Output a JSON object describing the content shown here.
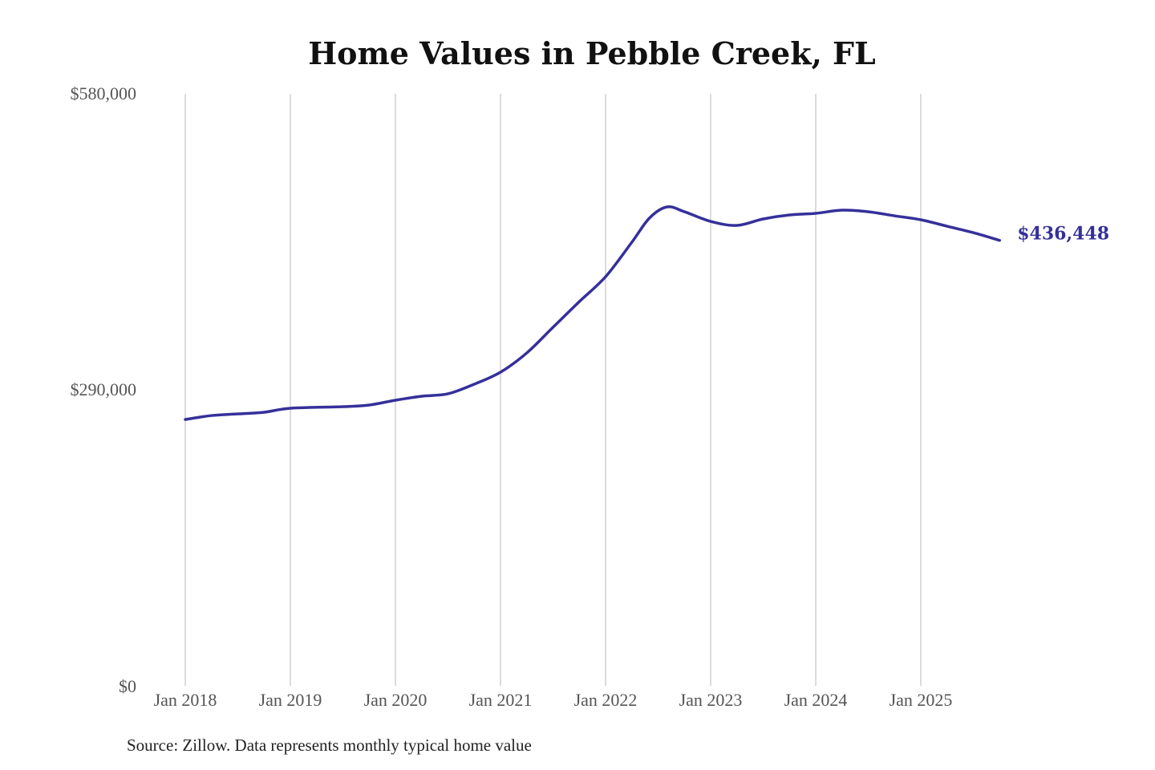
{
  "chart_data": {
    "type": "line",
    "title": "Home Values in Pebble Creek, FL",
    "xlabel": "",
    "ylabel": "",
    "ylim": [
      0,
      580000
    ],
    "y_ticks": [
      0,
      290000,
      580000
    ],
    "y_tick_labels": [
      "$0",
      "$290,000",
      "$580,000"
    ],
    "x_ticks": [
      "2018-01",
      "2019-01",
      "2020-01",
      "2021-01",
      "2022-01",
      "2023-01",
      "2024-01",
      "2025-01"
    ],
    "x_tick_labels": [
      "Jan 2018",
      "Jan 2019",
      "Jan 2020",
      "Jan 2021",
      "Jan 2022",
      "Jan 2023",
      "Jan 2024",
      "Jan 2025"
    ],
    "grid": "vertical",
    "line_color": "#35309a",
    "end_label": "$436,448",
    "series": [
      {
        "x": [
          "2018-01",
          "2018-04",
          "2018-07",
          "2018-10",
          "2019-01",
          "2019-07",
          "2019-10",
          "2020-01",
          "2020-04",
          "2020-07",
          "2020-10",
          "2021-01",
          "2021-04",
          "2021-07",
          "2021-10",
          "2022-01",
          "2022-04",
          "2022-06",
          "2022-08",
          "2022-10",
          "2023-01",
          "2023-04",
          "2023-07",
          "2023-10",
          "2024-01",
          "2024-04",
          "2024-07",
          "2024-10",
          "2025-01",
          "2025-04",
          "2025-07",
          "2025-10"
        ],
        "y": [
          260900,
          264800,
          266400,
          268000,
          271900,
          273500,
          275100,
          279800,
          283700,
          286100,
          295500,
          307300,
          326100,
          351300,
          376400,
          400800,
          434600,
          458200,
          469200,
          464500,
          455000,
          451100,
          457400,
          461300,
          462900,
          466000,
          464500,
          460500,
          456600,
          450300,
          444000,
          436448
        ]
      }
    ]
  },
  "source": "Source: Zillow. Data represents monthly typical home value"
}
